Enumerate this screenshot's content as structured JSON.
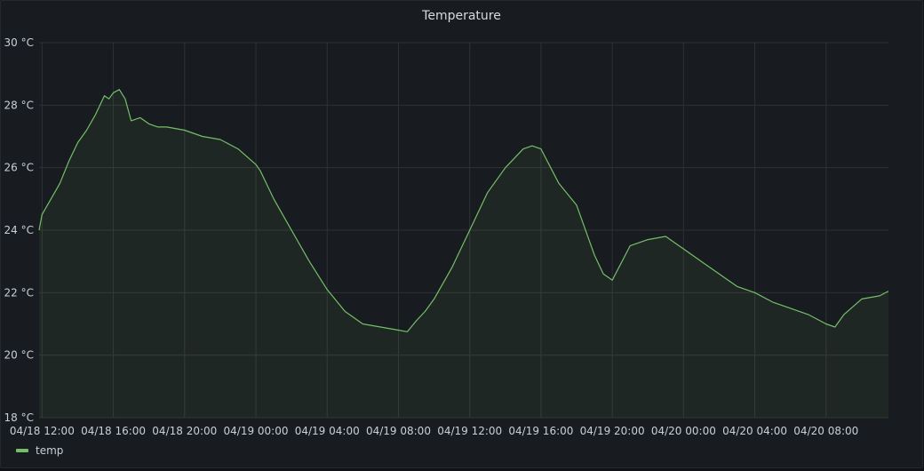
{
  "panel": {
    "title": "Temperature"
  },
  "legend": {
    "items": [
      {
        "label": "temp",
        "color": "#73bf69"
      }
    ]
  },
  "chart_data": {
    "type": "area",
    "title": "Temperature",
    "xlabel": "",
    "ylabel": "",
    "y_unit": "°C",
    "ylim": [
      18,
      30
    ],
    "y_ticks": [
      18,
      20,
      22,
      24,
      26,
      28,
      30
    ],
    "y_tick_labels": [
      "18 °C",
      "20 °C",
      "22 °C",
      "24 °C",
      "26 °C",
      "28 °C",
      "30 °C"
    ],
    "x_tick_labels": [
      "04/18 12:00",
      "04/18 16:00",
      "04/18 20:00",
      "04/19 00:00",
      "04/19 04:00",
      "04/19 08:00",
      "04/19 12:00",
      "04/19 16:00",
      "04/19 20:00",
      "04/20 00:00",
      "04/20 04:00",
      "04/20 08:00"
    ],
    "xlim": [
      "04/18 11:50",
      "04/20 11:30"
    ],
    "grid": true,
    "legend_position": "bottom-left",
    "colors": {
      "line": "#73bf69",
      "fill": "rgba(115,191,105,0.08)",
      "grid": "#2f3136",
      "text": "#c7d0d9"
    },
    "series": [
      {
        "name": "temp",
        "x": [
          "04/18 11:50",
          "04/18 12:00",
          "04/18 12:30",
          "04/18 13:00",
          "04/18 13:30",
          "04/18 14:00",
          "04/18 14:30",
          "04/18 15:00",
          "04/18 15:30",
          "04/18 15:45",
          "04/18 16:00",
          "04/18 16:20",
          "04/18 16:40",
          "04/18 17:00",
          "04/18 17:30",
          "04/18 18:00",
          "04/18 18:30",
          "04/18 19:00",
          "04/18 20:00",
          "04/18 21:00",
          "04/18 22:00",
          "04/18 23:00",
          "04/19 00:00",
          "04/19 00:15",
          "04/19 01:00",
          "04/19 02:00",
          "04/19 03:00",
          "04/19 04:00",
          "04/19 05:00",
          "04/19 06:00",
          "04/19 07:00",
          "04/19 08:00",
          "04/19 08:30",
          "04/19 09:00",
          "04/19 09:30",
          "04/19 10:00",
          "04/19 11:00",
          "04/19 12:00",
          "04/19 13:00",
          "04/19 14:00",
          "04/19 15:00",
          "04/19 15:30",
          "04/19 16:00",
          "04/19 17:00",
          "04/19 18:00",
          "04/19 19:00",
          "04/19 19:30",
          "04/19 20:00",
          "04/19 21:00",
          "04/19 22:00",
          "04/19 23:00",
          "04/19 23:30",
          "04/20 00:00",
          "04/20 01:00",
          "04/20 02:00",
          "04/20 03:00",
          "04/20 04:00",
          "04/20 05:00",
          "04/20 06:00",
          "04/20 07:00",
          "04/20 08:00",
          "04/20 08:30",
          "04/20 09:00",
          "04/20 10:00",
          "04/20 11:00",
          "04/20 11:30"
        ],
        "values": [
          24.0,
          24.5,
          25.0,
          25.5,
          26.2,
          26.8,
          27.2,
          27.7,
          28.3,
          28.2,
          28.4,
          28.5,
          28.2,
          27.5,
          27.6,
          27.4,
          27.3,
          27.3,
          27.2,
          27.0,
          26.9,
          26.6,
          26.1,
          25.9,
          25.0,
          24.0,
          23.0,
          22.1,
          21.4,
          21.0,
          20.9,
          20.8,
          20.75,
          21.1,
          21.4,
          21.8,
          22.8,
          24.0,
          25.2,
          26.0,
          26.6,
          26.7,
          26.6,
          25.5,
          24.8,
          23.2,
          22.6,
          22.4,
          23.5,
          23.7,
          23.8,
          23.6,
          23.4,
          23.0,
          22.6,
          22.2,
          22.0,
          21.7,
          21.5,
          21.3,
          21.0,
          20.9,
          21.3,
          21.8,
          21.9,
          22.05
        ]
      }
    ]
  }
}
